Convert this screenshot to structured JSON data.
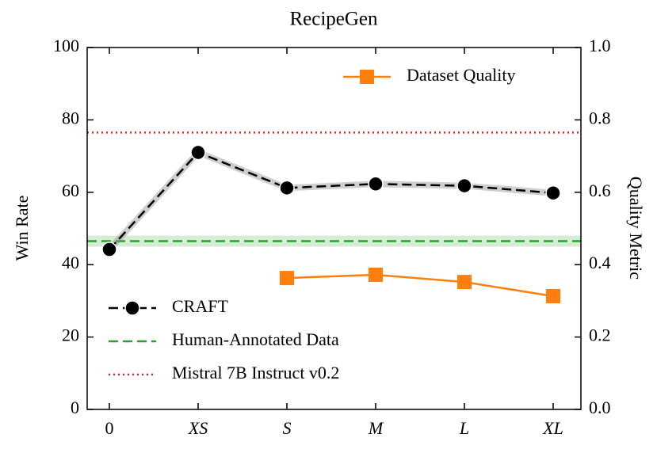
{
  "chart_data": {
    "type": "line",
    "title": "RecipeGen",
    "ylabel": "Win Rate",
    "y2label": "Quality Metric",
    "categories": [
      "0",
      "XS",
      "S",
      "M",
      "L",
      "XL"
    ],
    "ylim": [
      0,
      100
    ],
    "yticks": [
      0,
      20,
      40,
      60,
      80,
      100
    ],
    "y2lim": [
      0,
      1
    ],
    "y2ticks": [
      {
        "value": 0,
        "label": "0.0"
      },
      0.2,
      0.4,
      0.6,
      0.8,
      {
        "value": 1,
        "label": "1.0"
      }
    ],
    "series": [
      {
        "name": "CRAFT",
        "color": "#000000",
        "marker": "circle",
        "dash": "dashed",
        "values": [
          44.2,
          71,
          61.2,
          62.3,
          61.8,
          59.8
        ]
      },
      {
        "name": "Dataset Quality",
        "color": "#ff7f0e",
        "marker": "square",
        "dash": "solid",
        "axis": "y2",
        "values": [
          null,
          null,
          0.363,
          0.372,
          0.352,
          0.313
        ]
      }
    ],
    "hlines": [
      {
        "name": "Human-Annotated Data",
        "color": "#2ca02c",
        "dash": "dashed",
        "value": 46.5
      },
      {
        "name": "Mistral 7B Instruct v0.2",
        "color": "#d62728",
        "dash": "dotted",
        "value": 76.5
      }
    ],
    "legend": "lower left",
    "legend2": "upper right"
  }
}
